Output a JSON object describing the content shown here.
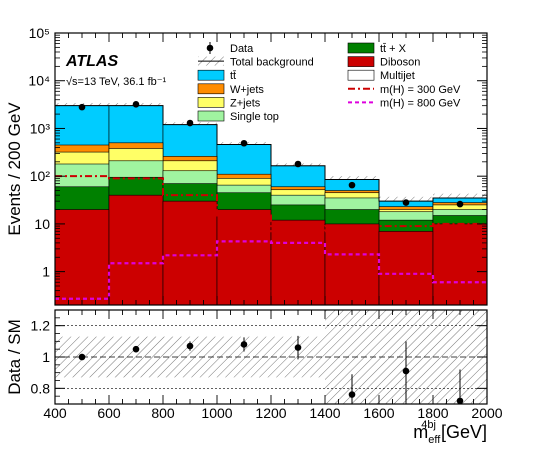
{
  "chart_data": [
    {
      "type": "bar",
      "stacked": true,
      "log_y": true,
      "ylim": [
        0.2,
        100000
      ],
      "xlim": [
        400,
        2000
      ],
      "bin_edges": [
        400,
        600,
        800,
        1000,
        1200,
        1400,
        1600,
        1800,
        2000
      ],
      "ylabel": "Events / 200 GeV",
      "y_tick_labels": [
        "1",
        "10",
        "10²",
        "10³",
        "10⁴",
        "10⁵"
      ],
      "experiment_label": "ATLAS",
      "lumi_label": "√s=13 TeV, 36.1 fb⁻¹",
      "legend_placement": "top-right",
      "legend": [
        {
          "key": "data",
          "label": "Data"
        },
        {
          "key": "total",
          "label": "Total background"
        },
        {
          "key": "ttbar",
          "label": "tt̄"
        },
        {
          "key": "wjets",
          "label": "W+jets"
        },
        {
          "key": "zjets",
          "label": "Z+jets"
        },
        {
          "key": "singletop",
          "label": "Single top"
        },
        {
          "key": "ttx",
          "label": "tt̄ + X"
        },
        {
          "key": "diboson",
          "label": "Diboson"
        },
        {
          "key": "multijet",
          "label": "Multijet"
        },
        {
          "key": "h300",
          "label": "m(H) = 300 GeV"
        },
        {
          "key": "h800",
          "label": "m(H) = 800 GeV"
        }
      ],
      "stack_order": [
        "diboson",
        "ttx",
        "singletop",
        "zjets",
        "wjets",
        "ttbar"
      ],
      "stack_tops": {
        "diboson": [
          20,
          40,
          30,
          20,
          12,
          10,
          7,
          10
        ],
        "ttx": [
          60,
          95,
          70,
          45,
          25,
          20,
          12,
          15
        ],
        "singletop": [
          180,
          210,
          130,
          65,
          40,
          35,
          18,
          20
        ],
        "zjets": [
          320,
          380,
          210,
          90,
          52,
          45,
          20,
          25
        ],
        "wjets": [
          450,
          500,
          260,
          110,
          60,
          50,
          23,
          28
        ],
        "ttbar": [
          3000,
          3000,
          1200,
          460,
          165,
          85,
          30,
          35
        ]
      },
      "stack_colors": {
        "ttbar": "#00ccff",
        "wjets": "#ff8c00",
        "zjets": "#ffff66",
        "singletop": "#a0f4a0",
        "ttx": "#008000",
        "diboson": "#cc0000",
        "multijet": "#ffffff"
      },
      "bkg_uncertainty": {
        "low": [
          2600,
          2600,
          1050,
          400,
          145,
          70,
          23,
          27
        ],
        "high": [
          3400,
          3400,
          1350,
          520,
          185,
          100,
          37,
          43
        ]
      },
      "data": {
        "x": [
          500,
          700,
          900,
          1100,
          1300,
          1500,
          1700,
          1900
        ],
        "y": [
          2800,
          3200,
          1300,
          490,
          180,
          65,
          28,
          26
        ]
      },
      "signal_h300": {
        "values": [
          100,
          90,
          40,
          15,
          7,
          9,
          9,
          10
        ],
        "color": "#cc0000"
      },
      "signal_h800": {
        "values": [
          0.27,
          1.5,
          2.2,
          4.3,
          4.0,
          2.3,
          0.9,
          0.6
        ],
        "color": "#dd00dd"
      }
    },
    {
      "type": "scatter",
      "ylabel": "Data / SM",
      "xlabel": "m_eff^4bj [GeV]",
      "xlabel_main": "m",
      "xlabel_sub": "eff",
      "xlabel_sup": "4bj",
      "xlabel_unit": " [GeV]",
      "xlim": [
        400,
        2000
      ],
      "ylim": [
        0.7,
        1.3
      ],
      "x_tick_labels": [
        "400",
        "600",
        "800",
        "1000",
        "1200",
        "1400",
        "1600",
        "1800",
        "2000"
      ],
      "y_tick_labels": [
        "0.8",
        "1",
        "1.2"
      ],
      "points": {
        "x": [
          500,
          700,
          900,
          1100,
          1300,
          1500,
          1700,
          1900
        ],
        "y": [
          1.0,
          1.05,
          1.07,
          1.08,
          1.06,
          0.76,
          0.91,
          0.72
        ],
        "err": [
          0.02,
          0.02,
          0.03,
          0.045,
          0.075,
          0.13,
          0.19,
          0.2
        ]
      },
      "band": {
        "low": [
          0.87,
          0.87,
          0.87,
          0.87,
          0.87,
          0.7,
          0.7,
          0.7
        ],
        "high": [
          1.13,
          1.13,
          1.13,
          1.13,
          1.13,
          1.3,
          1.3,
          1.3
        ]
      }
    }
  ]
}
